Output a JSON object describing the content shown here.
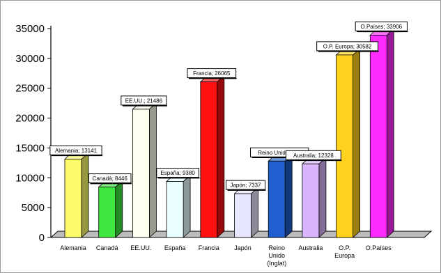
{
  "chart_data": {
    "type": "bar",
    "style": "3d-column",
    "categories": [
      "Alemania",
      "Canadá",
      "EE.UU.",
      "España",
      "Francia",
      "Japón",
      "Reino Unido (Inglat)",
      "Australia",
      "O.P. Europa",
      "O.Países"
    ],
    "category_lines": [
      [
        "Alemania"
      ],
      [
        "Canadá"
      ],
      [
        "EE.UU."
      ],
      [
        "España"
      ],
      [
        "Francia"
      ],
      [
        "Japón"
      ],
      [
        "Reino",
        "Unido",
        "(Inglat)"
      ],
      [
        "Australia"
      ],
      [
        "O.P.",
        "Europa"
      ],
      [
        "O.Países"
      ]
    ],
    "values": [
      13141,
      8446,
      21486,
      9380,
      26065,
      7337,
      12800,
      12328,
      30582,
      33906
    ],
    "data_labels": [
      "Alemania; 13141",
      "Canadá; 8446",
      "EE.UU.; 21486",
      "España; 9380",
      "Francia; 26065",
      "Japón; 7337",
      "Reino Unido (Ingl",
      "Australia; 12328",
      "O.P. Europa; 30582",
      "O.Países; 33906"
    ],
    "colors": [
      "#fbfb6b",
      "#3ee83e",
      "#fffff0",
      "#e9ffff",
      "#ff1010",
      "#e6e6ff",
      "#1f5fd0",
      "#d9b5ff",
      "#ffd21e",
      "#ff2cff"
    ],
    "y_ticks": [
      "0",
      "5000",
      "10000",
      "15000",
      "20000",
      "25000",
      "30000",
      "35000"
    ],
    "ylim": [
      0,
      35000
    ],
    "title": "",
    "xlabel": "",
    "ylabel": "",
    "grid": false,
    "legend": "none"
  }
}
